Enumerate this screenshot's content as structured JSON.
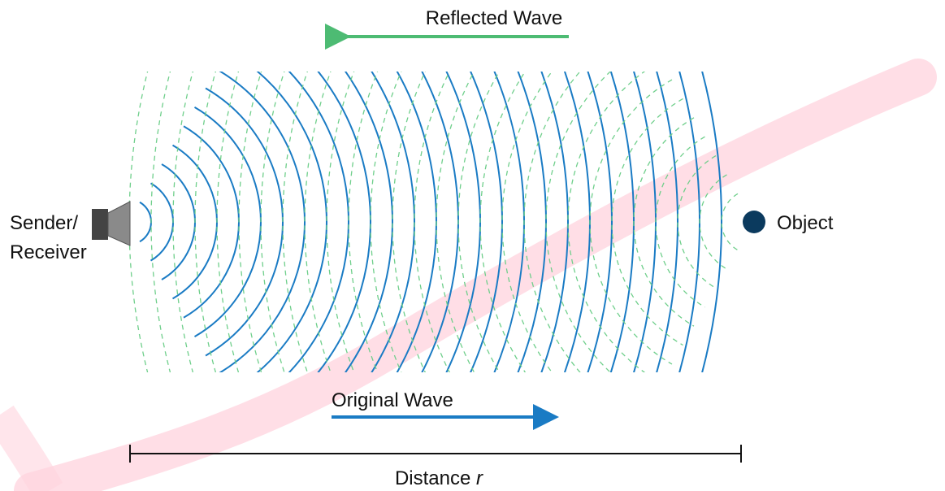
{
  "title": "Reflected Wave",
  "sender": {
    "line1": "Sender/",
    "line2": "Receiver"
  },
  "object": "Object",
  "original": "Original Wave",
  "distance": {
    "label": "Distance",
    "variable": "r"
  }
}
